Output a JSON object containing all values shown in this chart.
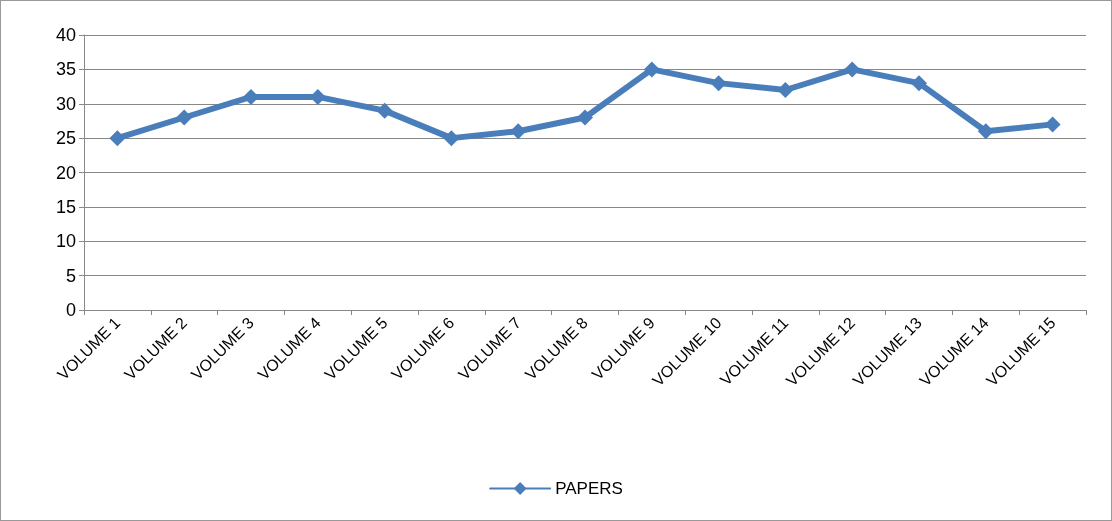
{
  "chart_data": {
    "type": "line",
    "categories": [
      "VOLUME 1",
      "VOLUME 2",
      "VOLUME 3",
      "VOLUME 4",
      "VOLUME 5",
      "VOLUME 6",
      "VOLUME 7",
      "VOLUME 8",
      "VOLUME 9",
      "VOLUME 10",
      "VOLUME 11",
      "VOLUME 12",
      "VOLUME 13",
      "VOLUME 14",
      "VOLUME 15"
    ],
    "series": [
      {
        "name": "PAPERS",
        "color": "#4a7ebb",
        "values": [
          25,
          28,
          31,
          31,
          29,
          25,
          26,
          28,
          35,
          33,
          32,
          35,
          33,
          26,
          27
        ]
      }
    ],
    "ylim": [
      0,
      40
    ],
    "yticks": [
      0,
      5,
      10,
      15,
      20,
      25,
      30,
      35,
      40
    ],
    "grid": "y",
    "legend": "bottom",
    "marker": "diamond",
    "line_style": "solid"
  }
}
